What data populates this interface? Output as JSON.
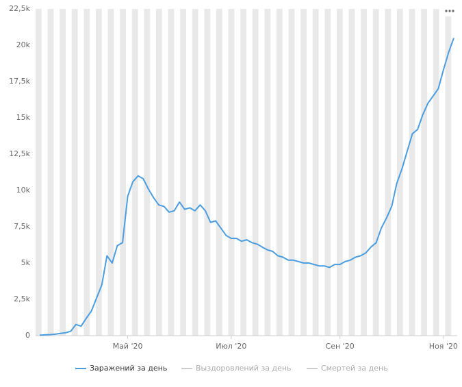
{
  "chart_data": {
    "type": "line",
    "categories": [
      null,
      null,
      null,
      null,
      null,
      null,
      null,
      null,
      null,
      null,
      null,
      null,
      null,
      null,
      null,
      null,
      null,
      "Май '20",
      null,
      null,
      null,
      null,
      null,
      null,
      null,
      null,
      null,
      null,
      null,
      null,
      null,
      null,
      null,
      null,
      null,
      null,
      null,
      "Июл '20",
      null,
      null,
      null,
      null,
      null,
      null,
      null,
      null,
      null,
      null,
      null,
      null,
      null,
      null,
      null,
      null,
      null,
      null,
      null,
      null,
      "Сен '20",
      null,
      null,
      null,
      null,
      null,
      null,
      null,
      null,
      null,
      null,
      null,
      null,
      null,
      null,
      null,
      null,
      null,
      null,
      null,
      "Ноя '20",
      null,
      null
    ],
    "series": [
      {
        "name": "Заражений за день",
        "color": "#4a9de0",
        "visible": true,
        "values": [
          30,
          50,
          70,
          100,
          150,
          200,
          300,
          770,
          650,
          1200,
          1700,
          2600,
          3500,
          5500,
          5000,
          6200,
          6400,
          9600,
          10600,
          11000,
          10800,
          10100,
          9500,
          9000,
          8900,
          8500,
          8600,
          9200,
          8700,
          8800,
          8600,
          9000,
          8600,
          7800,
          7900,
          7400,
          6900,
          6700,
          6700,
          6500,
          6600,
          6400,
          6300,
          6100,
          5900,
          5800,
          5500,
          5400,
          5200,
          5200,
          5100,
          5000,
          5000,
          4900,
          4800,
          4800,
          4700,
          4900,
          4900,
          5100,
          5200,
          5400,
          5500,
          5700,
          6100,
          6400,
          7400,
          8100,
          8900,
          10500,
          11500,
          12700,
          13900,
          14200,
          15200,
          16000,
          16500,
          17000,
          18300,
          19500,
          20500
        ]
      },
      {
        "name": "Выздоровлений за день",
        "color": "#aaaaaa",
        "visible": false
      },
      {
        "name": "Смертей за день",
        "color": "#aaaaaa",
        "visible": false
      }
    ],
    "ylim": [
      0,
      22500
    ],
    "yticks": [
      0,
      {
        "value": 2500,
        "label": "2,5k"
      },
      {
        "value": 5000,
        "label": "5k"
      },
      {
        "value": 7500,
        "label": "7,5k"
      },
      {
        "value": 10000,
        "label": "10k"
      },
      {
        "value": 12500,
        "label": "12,5k"
      },
      {
        "value": 15000,
        "label": "15k"
      },
      {
        "value": 17500,
        "label": "17,5k"
      },
      {
        "value": 20000,
        "label": "20k"
      },
      {
        "value": 22500,
        "label": "22,5k"
      }
    ],
    "grid": true
  }
}
